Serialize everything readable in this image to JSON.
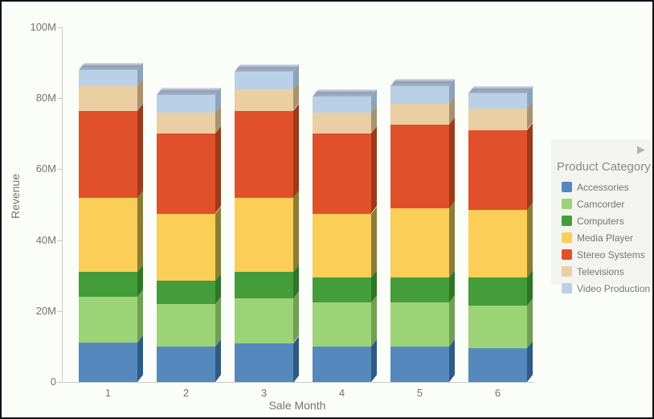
{
  "chart_data": {
    "type": "bar",
    "stacked": true,
    "style": "3d",
    "xlabel": "Sale Month",
    "ylabel": "Revenue",
    "categories": [
      "1",
      "2",
      "3",
      "4",
      "5",
      "6"
    ],
    "y_ticks": [
      "0",
      "20M",
      "40M",
      "60M",
      "80M",
      "100M"
    ],
    "ylim": [
      0,
      100
    ],
    "value_unit": "millions",
    "grid": false,
    "legend_title": "Product Category",
    "legend_position": "right",
    "legend_collapse_arrow": "▶",
    "series": [
      {
        "name": "Accessories",
        "color": "#5589BD",
        "side_color": "#2E5A85",
        "values": [
          11,
          10,
          11,
          10,
          10,
          9.5
        ]
      },
      {
        "name": "Camcorder",
        "color": "#9CD377",
        "side_color": "#6FA054",
        "values": [
          13,
          12,
          12.5,
          12.5,
          12.5,
          12
        ]
      },
      {
        "name": "Computers",
        "color": "#449C3B",
        "side_color": "#2E7526",
        "values": [
          7,
          6.5,
          7.5,
          7,
          7,
          8
        ]
      },
      {
        "name": "Media Player",
        "color": "#FBCE58",
        "side_color": "#8C7D36",
        "values": [
          21,
          19,
          21,
          18,
          19.5,
          19
        ]
      },
      {
        "name": "Stereo Systems",
        "color": "#E0502A",
        "side_color": "#9C3A1A",
        "values": [
          24.5,
          22.5,
          24.5,
          22.5,
          23.5,
          22.5
        ]
      },
      {
        "name": "Televisions",
        "color": "#EACFA2",
        "side_color": "#A89271",
        "values": [
          7,
          6,
          6,
          6,
          6,
          6
        ]
      },
      {
        "name": "Video Production",
        "color": "#BAD0E6",
        "side_color": "#8BA3BD",
        "values": [
          4.5,
          5,
          5,
          4.5,
          5,
          4.5
        ]
      }
    ],
    "approx_totals_millions": [
      88,
      81,
      87.5,
      80.5,
      83.5,
      81.5
    ]
  }
}
